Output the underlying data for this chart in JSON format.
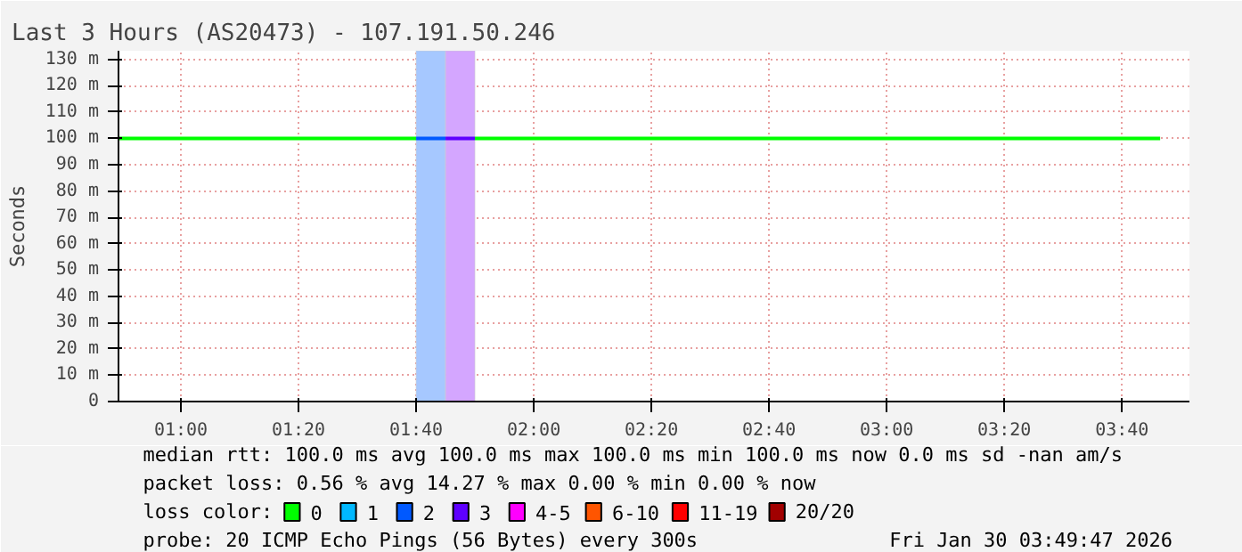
{
  "chart_data": {
    "type": "line",
    "title": "Last 3 Hours (AS20473) - 107.191.50.246",
    "ylabel": "Seconds",
    "xlim": [
      0.8233,
      3.858
    ],
    "xticks": [
      {
        "value": 1,
        "label": "01:00"
      },
      {
        "value": 1.3333,
        "label": "01:20"
      },
      {
        "value": 1.6667,
        "label": "01:40"
      },
      {
        "value": 2,
        "label": "02:00"
      },
      {
        "value": 2.3333,
        "label": "02:20"
      },
      {
        "value": 2.6667,
        "label": "02:40"
      },
      {
        "value": 3,
        "label": "03:00"
      },
      {
        "value": 3.3333,
        "label": "03:20"
      },
      {
        "value": 3.6667,
        "label": "03:40"
      }
    ],
    "ylim": [
      0,
      133.3
    ],
    "yticks": [
      0,
      {
        "value": 10,
        "label": "10 m"
      },
      {
        "value": 20,
        "label": "20 m"
      },
      {
        "value": 30,
        "label": "30 m"
      },
      {
        "value": 40,
        "label": "40 m"
      },
      {
        "value": 50,
        "label": "50 m"
      },
      {
        "value": 60,
        "label": "60 m"
      },
      {
        "value": 70,
        "label": "70 m"
      },
      {
        "value": 80,
        "label": "80 m"
      },
      {
        "value": 90,
        "label": "90 m"
      },
      {
        "value": 100,
        "label": "100 m"
      },
      {
        "value": 110,
        "label": "110 m"
      },
      {
        "value": 120,
        "label": "120 m"
      },
      {
        "value": 130,
        "label": "130 m"
      }
    ],
    "series": [
      {
        "name": "0",
        "color": "#00ff00",
        "x": [
          0.8233,
          1.6667,
          1.75,
          1.8333,
          3.775
        ],
        "values": [
          100,
          100,
          null,
          100,
          100
        ]
      },
      {
        "name": "1",
        "color": "#00b8ff"
      },
      {
        "name": "2",
        "color": "#0059ff",
        "x": [
          1.6667,
          1.75
        ],
        "values": [
          100,
          100
        ]
      },
      {
        "name": "3",
        "color": "#5e00ff",
        "x": [
          1.75,
          1.8333
        ],
        "values": [
          100,
          100
        ]
      },
      {
        "name": "4-5",
        "color": "#ff00ff"
      },
      {
        "name": "6-10",
        "color": "#ff5500"
      },
      {
        "name": "11-19",
        "color": "#ff0000"
      },
      {
        "name": "20/20",
        "color": "#a10000"
      }
    ],
    "bands": [
      {
        "axis": "x",
        "from": 1.6667,
        "to": 1.75,
        "color": "#a6c8ff"
      },
      {
        "axis": "x",
        "from": 1.75,
        "to": 1.8333,
        "color": "#d4a6ff"
      }
    ],
    "legend": "bottom",
    "legend_title": "loss color:",
    "grid": true,
    "line_style": "solid",
    "marker": "none",
    "annotations": [
      "median rtt:  100.0 ms avg  100.0 ms max  100.0 ms min  100.0 ms now  0.0 ms sd  -nan   am/s",
      "packet loss: 0.56 % avg  14.27 % max  0.00 % min  0.00 % now",
      "probe:       20 ICMP Echo Pings (56 Bytes) every 300s",
      "Fri Jan 30 03:49:47 2026"
    ]
  }
}
